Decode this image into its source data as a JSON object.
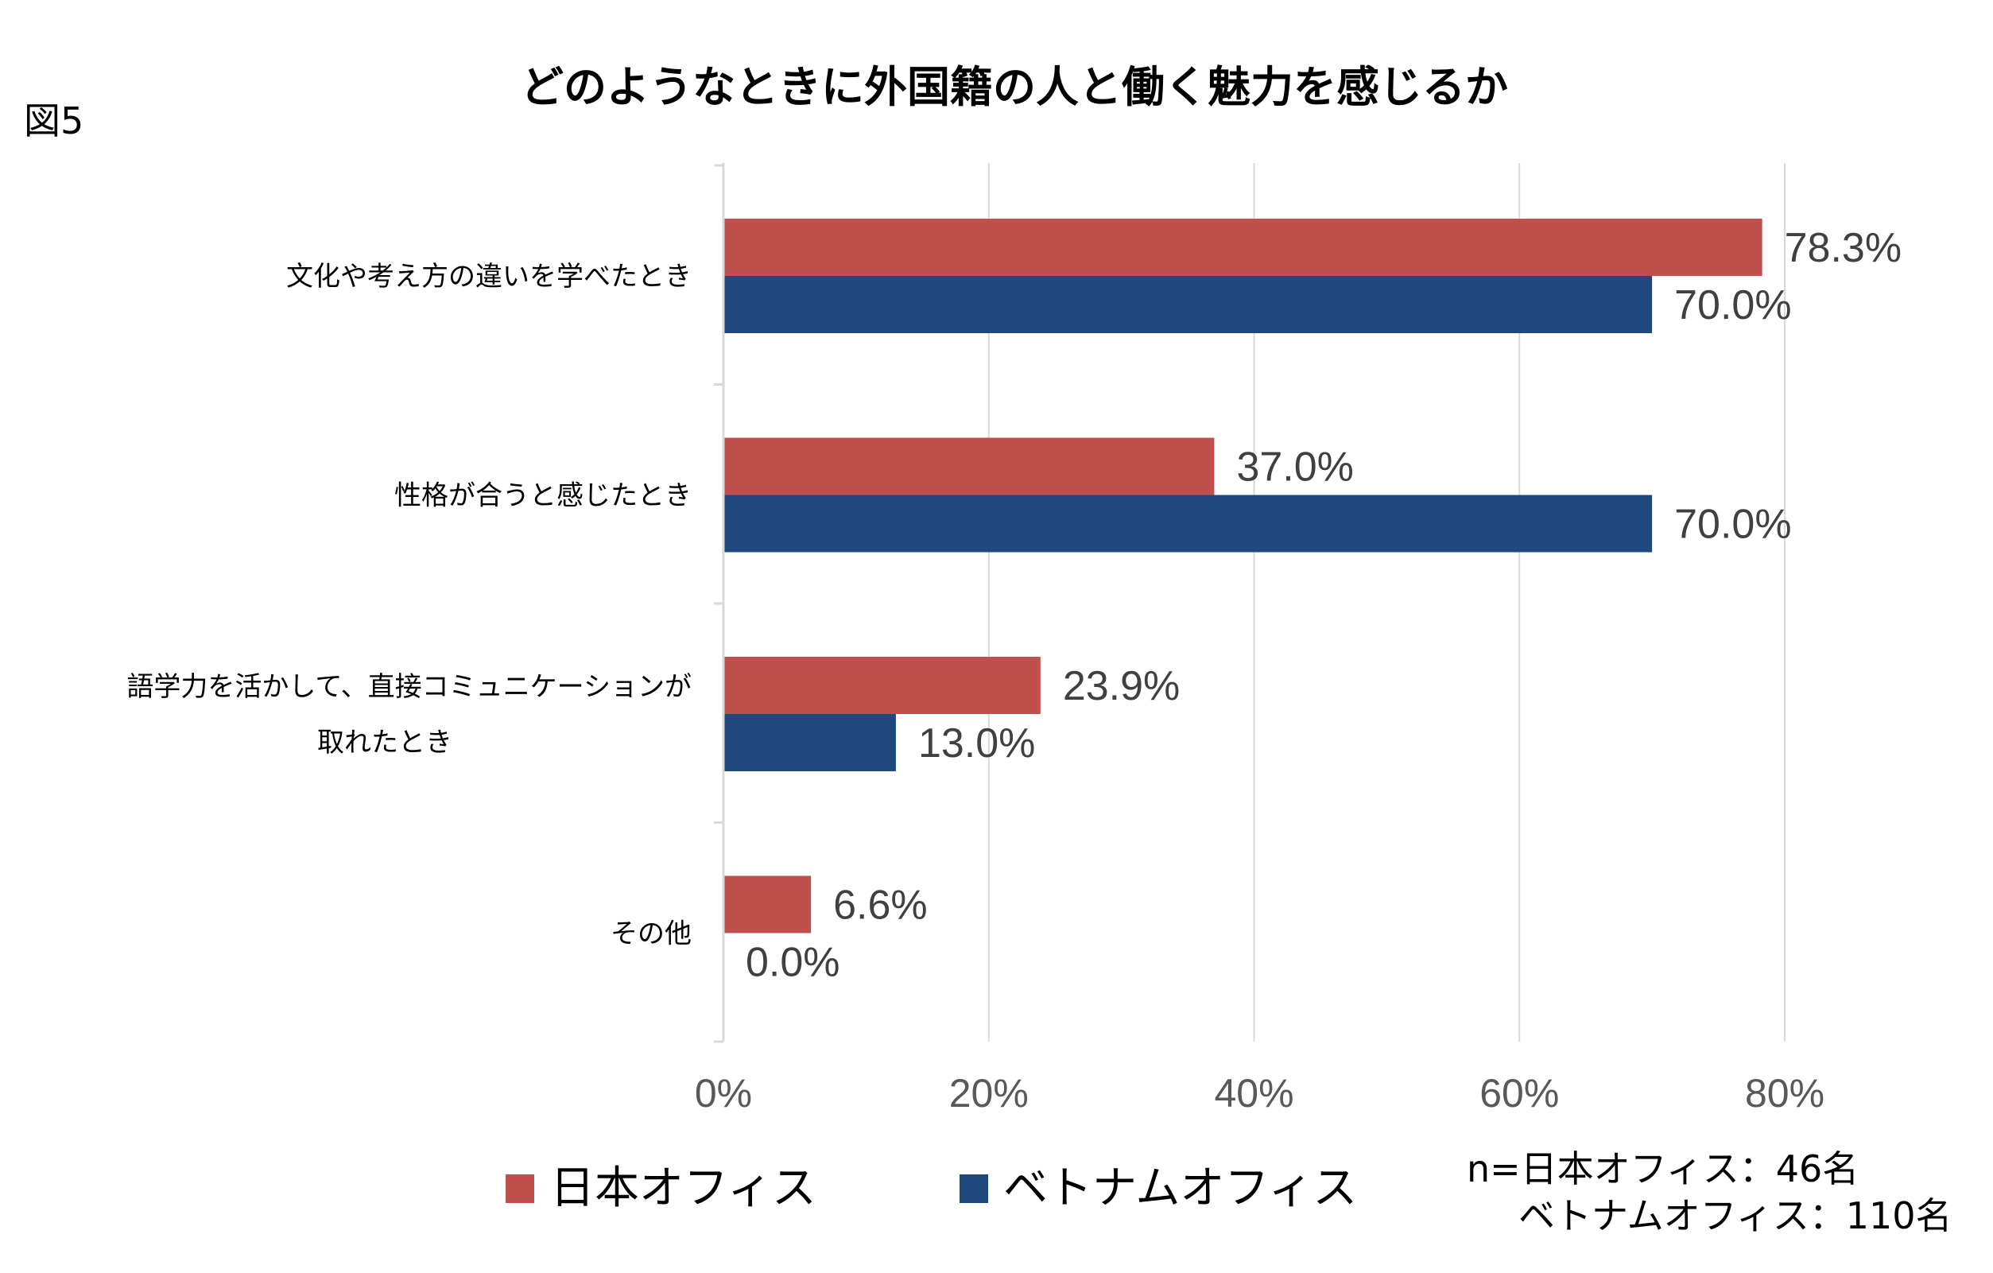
{
  "figure_label": "図5",
  "note": {
    "line1": "n=日本オフィス：46名",
    "line2": "ベトナムオフィス：110名"
  },
  "chart_data": {
    "type": "bar",
    "orientation": "horizontal",
    "title": "どのようなときに外国籍の人と働く魅力を感じるか",
    "categories": [
      [
        "文化や考え方の違いを学べたとき"
      ],
      [
        "性格が合うと感じたとき"
      ],
      [
        "語学力を活かして、直接コミュニケーションが",
        "取れたとき"
      ],
      [
        "その他"
      ]
    ],
    "series": [
      {
        "name": "日本オフィス",
        "color": "#c0504d",
        "values": [
          78.3,
          37.0,
          23.9,
          6.6
        ],
        "labels": [
          "78.3%",
          "37.0%",
          "23.9%",
          "6.6%"
        ]
      },
      {
        "name": "ベトナムオフィス",
        "color": "#1f497d",
        "values": [
          70.0,
          70.0,
          13.0,
          0.0
        ],
        "labels": [
          "70.0%",
          "70.0%",
          "13.0%",
          "0.0%"
        ]
      }
    ],
    "xlim": [
      0,
      80
    ],
    "ticks": [
      0,
      20,
      40,
      60,
      80
    ],
    "tick_labels": [
      "0%",
      "20%",
      "40%",
      "60%",
      "80%"
    ],
    "grid": true,
    "legend_position": "bottom"
  }
}
